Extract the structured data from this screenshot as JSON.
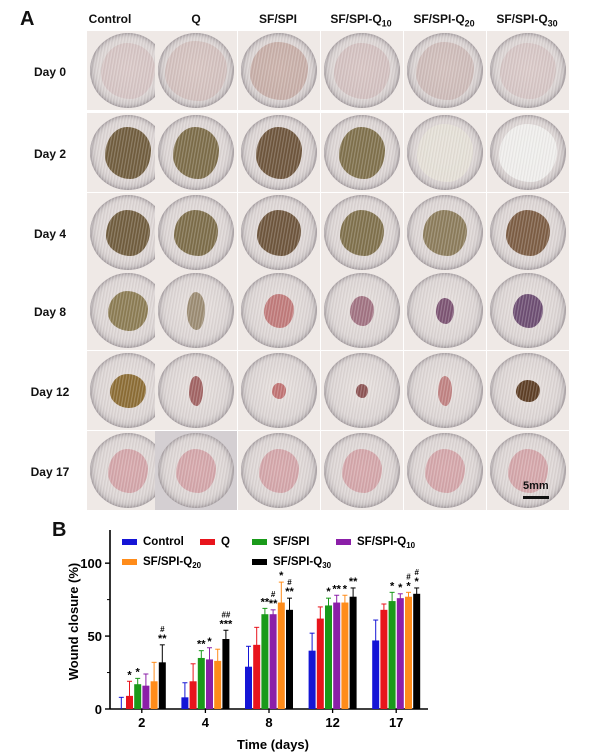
{
  "panel_a": {
    "letter": "A",
    "columns": [
      {
        "base": "Control",
        "sub": ""
      },
      {
        "base": "Q",
        "sub": ""
      },
      {
        "base": "SF/SPI",
        "sub": ""
      },
      {
        "base": "SF/SPI-Q",
        "sub": "10"
      },
      {
        "base": "SF/SPI-Q",
        "sub": "20"
      },
      {
        "base": "SF/SPI-Q",
        "sub": "30"
      }
    ],
    "rows": [
      "Day 0",
      "Day 2",
      "Day 4",
      "Day 8",
      "Day 12",
      "Day 17"
    ],
    "scale_label": "5mm"
  },
  "chart_data": {
    "type": "bar",
    "panel_letter": "B",
    "title": "",
    "xlabel": "Time (days)",
    "ylabel": "Wound closure  (%)",
    "ylim": [
      0,
      120
    ],
    "yticks": [
      0,
      50,
      100
    ],
    "categories": [
      "2",
      "4",
      "8",
      "12",
      "17"
    ],
    "legend_placement": "top-left",
    "series": [
      {
        "name": "Control",
        "name_base": "Control",
        "name_sub": "",
        "color": "#1515d6",
        "values": [
          0,
          8,
          29,
          40,
          47
        ],
        "errors": [
          8,
          10,
          14,
          12,
          14
        ]
      },
      {
        "name": "Q",
        "name_base": "Q",
        "name_sub": "",
        "color": "#e8141c",
        "values": [
          9,
          19,
          44,
          62,
          68
        ],
        "errors": [
          10,
          12,
          12,
          8,
          4
        ]
      },
      {
        "name": "SF/SPI",
        "name_base": "SF/SPI",
        "name_sub": "",
        "color": "#1a9a1a",
        "values": [
          17,
          35,
          65,
          71,
          74
        ],
        "errors": [
          4,
          5,
          4,
          5,
          6
        ]
      },
      {
        "name": "SF/SPI-Q10",
        "name_base": "SF/SPI-Q",
        "name_sub": "10",
        "color": "#8b1fa8",
        "values": [
          16,
          34,
          65,
          73,
          76
        ],
        "errors": [
          8,
          8,
          3,
          5,
          3
        ]
      },
      {
        "name": "SF/SPI-Q20",
        "name_base": "SF/SPI-Q",
        "name_sub": "20",
        "color": "#ff8c1a",
        "values": [
          19,
          33,
          73,
          73,
          77
        ],
        "errors": [
          13,
          8,
          14,
          5,
          3
        ]
      },
      {
        "name": "SF/SPI-Q30",
        "name_base": "SF/SPI-Q",
        "name_sub": "30",
        "color": "#000000",
        "values": [
          32,
          48,
          68,
          77,
          79
        ],
        "errors": [
          12,
          6,
          8,
          6,
          4
        ]
      }
    ],
    "significance": [
      [
        [],
        [
          "*"
        ],
        [
          "*"
        ],
        [],
        [],
        [
          "#",
          "**"
        ]
      ],
      [
        [],
        [],
        [
          "**"
        ],
        [
          "*"
        ],
        [],
        [
          "##",
          "***"
        ]
      ],
      [
        [],
        [],
        [
          "**"
        ],
        [
          "#",
          "**"
        ],
        [
          "*"
        ],
        [
          "#",
          "**"
        ]
      ],
      [
        [],
        [],
        [
          "*"
        ],
        [
          "**"
        ],
        [
          "*"
        ],
        [
          "**"
        ]
      ],
      [
        [],
        [],
        [
          "*"
        ],
        [
          "*"
        ],
        [
          "#",
          "*"
        ],
        [
          "#",
          "*"
        ]
      ]
    ]
  }
}
